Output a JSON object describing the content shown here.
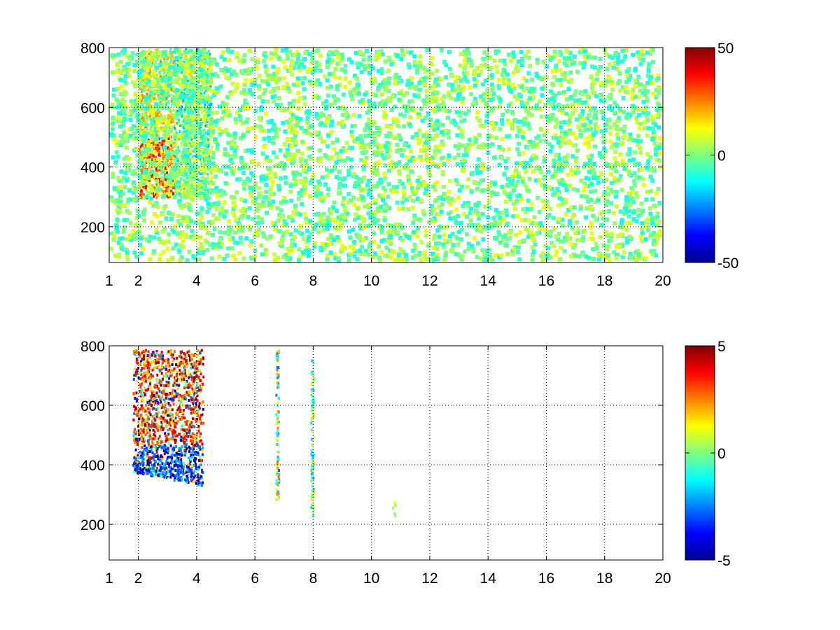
{
  "chart_data": [
    {
      "type": "heatmap",
      "title": "",
      "xlabel": "",
      "ylabel": "",
      "xlim": [
        1,
        20
      ],
      "ylim": [
        80,
        800
      ],
      "x_ticks": [
        1,
        2,
        4,
        6,
        8,
        10,
        12,
        14,
        16,
        18,
        20
      ],
      "x_tick_labels": [
        "1",
        "2",
        "4",
        "6",
        "8",
        "10",
        "12",
        "14",
        "16",
        "18",
        "20"
      ],
      "y_ticks": [
        200,
        400,
        600,
        800
      ],
      "y_tick_labels": [
        "200",
        "400",
        "600",
        "800"
      ],
      "grid": true,
      "colormap": "jet",
      "clim": [
        -50,
        50
      ],
      "colorbar_ticks": [
        -50,
        0,
        50
      ],
      "colorbar_tick_labels": [
        "-50",
        "0",
        "50"
      ],
      "features": [
        {
          "description": "dense positive/negative band",
          "x_range": [
            2.0,
            4.5
          ],
          "y_range": [
            300,
            800
          ],
          "value_range": [
            -30,
            35
          ]
        },
        {
          "description": "sparse near-zero scatter",
          "x_range": [
            1,
            20
          ],
          "y_range": [
            80,
            800
          ],
          "value_range": [
            -12,
            12
          ]
        }
      ]
    },
    {
      "type": "heatmap",
      "title": "",
      "xlabel": "",
      "ylabel": "",
      "xlim": [
        1,
        20
      ],
      "ylim": [
        80,
        800
      ],
      "x_ticks": [
        1,
        2,
        4,
        6,
        8,
        10,
        12,
        14,
        16,
        18,
        20
      ],
      "x_tick_labels": [
        "1",
        "2",
        "4",
        "6",
        "8",
        "10",
        "12",
        "14",
        "16",
        "18",
        "20"
      ],
      "y_ticks": [
        200,
        400,
        600,
        800
      ],
      "y_tick_labels": [
        "200",
        "400",
        "600",
        "800"
      ],
      "grid": true,
      "colormap": "jet",
      "clim": [
        -5,
        5
      ],
      "colorbar_ticks": [
        -5,
        0,
        5
      ],
      "colorbar_tick_labels": [
        "-5",
        "0",
        "5"
      ],
      "features": [
        {
          "description": "arc of values, positive above, negative below",
          "x_range": [
            1.8,
            4.2
          ],
          "y_range": [
            330,
            790
          ],
          "value_range": [
            -5,
            5
          ]
        },
        {
          "description": "thin vertical streak",
          "x_range": [
            6.7,
            6.8
          ],
          "y_range": [
            280,
            790
          ],
          "value_range": [
            -3,
            3
          ]
        },
        {
          "description": "thin vertical streak",
          "x_range": [
            7.9,
            8.0
          ],
          "y_range": [
            220,
            760
          ],
          "value_range": [
            -2,
            2
          ]
        },
        {
          "description": "isolated points",
          "x_range": [
            10.7,
            10.8
          ],
          "y_range": [
            230,
            290
          ],
          "value_range": [
            -1,
            2
          ]
        }
      ]
    }
  ]
}
